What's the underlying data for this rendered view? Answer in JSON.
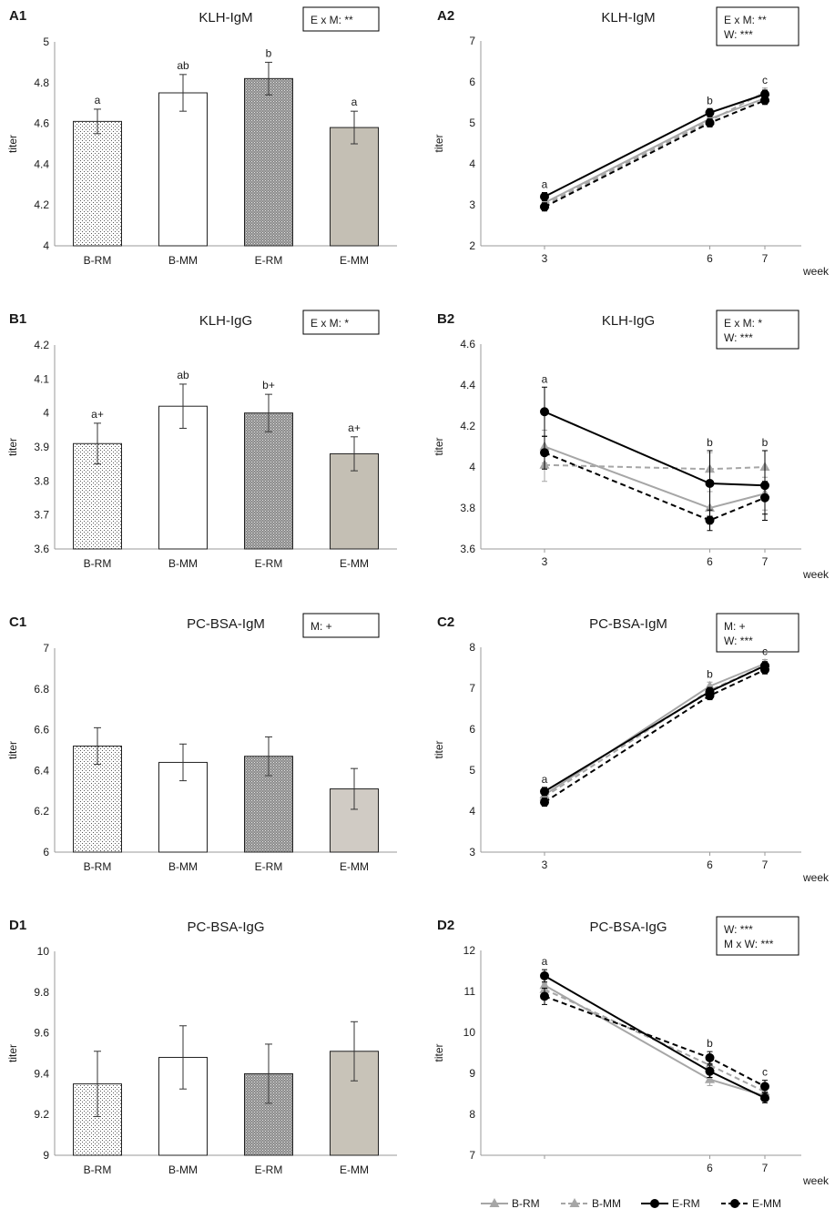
{
  "colors": {
    "light_gray": "#a6a6a6",
    "black": "#000000",
    "bar_fill_mm": "#ffffff",
    "bar_fill_emm_1": "#c4bfb4",
    "bar_fill_emm_2": "#d0cbc4",
    "bar_fill_emm_3": "#c8c3b8",
    "bar_fill_emm_4": "#c4bfb4"
  },
  "legend": {
    "items": [
      {
        "label": "B-RM",
        "color": "#a6a6a6",
        "dashed": false
      },
      {
        "label": "B-MM",
        "color": "#a6a6a6",
        "dashed": true
      },
      {
        "label": "E-RM",
        "color": "#000000",
        "dashed": false
      },
      {
        "label": "E-MM",
        "color": "#000000",
        "dashed": true
      }
    ]
  },
  "chart_data": [
    {
      "panel": "A1",
      "type": "bar",
      "title": "KLH-IgM",
      "ylabel": "titer",
      "ylim": [
        4,
        5
      ],
      "yticks": [
        "4",
        "4.2",
        "4.4",
        "4.6",
        "4.8",
        "5"
      ],
      "categories": [
        "B-RM",
        "B-MM",
        "E-RM",
        "E-MM"
      ],
      "values": [
        4.61,
        4.75,
        4.82,
        4.58
      ],
      "errors": [
        0.06,
        0.09,
        0.08,
        0.08
      ],
      "annotations": [
        "a",
        "ab",
        "b",
        "a"
      ],
      "fills": [
        "dots",
        "white",
        "dense",
        "tan1"
      ],
      "stats": [
        "E x M: **"
      ]
    },
    {
      "panel": "A2",
      "type": "line",
      "title": "KLH-IgM",
      "ylabel": "titer",
      "xlabel": "week",
      "ylim": [
        2,
        7
      ],
      "yticks": [
        "2",
        "3",
        "4",
        "5",
        "6",
        "7"
      ],
      "x": [
        3,
        6,
        7
      ],
      "xticks": [
        "3",
        "6",
        "7"
      ],
      "series": [
        {
          "name": "B-RM",
          "values": [
            3.05,
            5.1,
            5.6
          ],
          "errors": [
            0.1,
            0.1,
            0.1
          ]
        },
        {
          "name": "B-MM",
          "values": [
            3.0,
            5.05,
            5.75
          ],
          "errors": [
            0.1,
            0.1,
            0.1
          ]
        },
        {
          "name": "E-RM",
          "values": [
            3.2,
            5.25,
            5.7
          ],
          "errors": [
            0.1,
            0.1,
            0.1
          ]
        },
        {
          "name": "E-MM",
          "values": [
            2.95,
            5.0,
            5.55
          ],
          "errors": [
            0.1,
            0.1,
            0.1
          ]
        }
      ],
      "annotations": [
        "a",
        "b",
        "c"
      ],
      "stats": [
        "E x M: **",
        "W: ***"
      ]
    },
    {
      "panel": "B1",
      "type": "bar",
      "title": "KLH-IgG",
      "ylabel": "titer",
      "ylim": [
        3.6,
        4.2
      ],
      "yticks": [
        "3.6",
        "3.7",
        "3.8",
        "3.9",
        "4",
        "4.1",
        "4.2"
      ],
      "categories": [
        "B-RM",
        "B-MM",
        "E-RM",
        "E-MM"
      ],
      "values": [
        3.91,
        4.02,
        4.0,
        3.88
      ],
      "errors": [
        0.06,
        0.065,
        0.055,
        0.05
      ],
      "annotations": [
        "a+",
        "ab",
        "b+",
        "a+"
      ],
      "fills": [
        "dots",
        "white",
        "dense",
        "tan1"
      ],
      "stats": [
        "E x M: *"
      ]
    },
    {
      "panel": "B2",
      "type": "line",
      "title": "KLH-IgG",
      "ylabel": "titer",
      "xlabel": "week",
      "ylim": [
        3.6,
        4.6
      ],
      "yticks": [
        "3.6",
        "3.8",
        "4",
        "4.2",
        "4.4",
        "4.6"
      ],
      "x": [
        3,
        6,
        7
      ],
      "xticks": [
        "3",
        "6",
        "7"
      ],
      "series": [
        {
          "name": "B-RM",
          "values": [
            4.1,
            3.8,
            3.87
          ],
          "errors": [
            0.08,
            0.08,
            0.08
          ]
        },
        {
          "name": "B-MM",
          "values": [
            4.01,
            3.99,
            4.0
          ],
          "errors": [
            0.08,
            0.08,
            0.08
          ]
        },
        {
          "name": "E-RM",
          "values": [
            4.27,
            3.92,
            3.91
          ],
          "errors": [
            0.12,
            0.16,
            0.17
          ]
        },
        {
          "name": "E-MM",
          "values": [
            4.07,
            3.74,
            3.85
          ],
          "errors": [
            0.08,
            0.05,
            0.08
          ]
        }
      ],
      "annotations": [
        "a",
        "b",
        "b"
      ],
      "stats": [
        "E x M: *",
        "W: ***"
      ]
    },
    {
      "panel": "C1",
      "type": "bar",
      "title": "PC-BSA-IgM",
      "ylabel": "titer",
      "ylim": [
        6,
        7
      ],
      "yticks": [
        "6",
        "6.2",
        "6.4",
        "6.6",
        "6.8",
        "7"
      ],
      "categories": [
        "B-RM",
        "B-MM",
        "E-RM",
        "E-MM"
      ],
      "values": [
        6.52,
        6.44,
        6.47,
        6.31
      ],
      "errors": [
        0.09,
        0.09,
        0.095,
        0.1
      ],
      "annotations": [
        "",
        "",
        "",
        ""
      ],
      "fills": [
        "dots",
        "white",
        "dense",
        "tan2"
      ],
      "stats": [
        "M: +"
      ]
    },
    {
      "panel": "C2",
      "type": "line",
      "title": "PC-BSA-IgM",
      "ylabel": "titer",
      "xlabel": "week",
      "ylim": [
        3,
        8
      ],
      "yticks": [
        "3",
        "4",
        "5",
        "6",
        "7",
        "8"
      ],
      "x": [
        3,
        6,
        7
      ],
      "xticks": [
        "3",
        "6",
        "7"
      ],
      "series": [
        {
          "name": "B-RM",
          "values": [
            4.4,
            7.05,
            7.6
          ],
          "errors": [
            0.1,
            0.1,
            0.1
          ]
        },
        {
          "name": "B-MM",
          "values": [
            4.35,
            6.95,
            7.55
          ],
          "errors": [
            0.1,
            0.1,
            0.1
          ]
        },
        {
          "name": "E-RM",
          "values": [
            4.48,
            6.92,
            7.55
          ],
          "errors": [
            0.1,
            0.1,
            0.1
          ]
        },
        {
          "name": "E-MM",
          "values": [
            4.22,
            6.82,
            7.45
          ],
          "errors": [
            0.1,
            0.1,
            0.1
          ]
        }
      ],
      "annotations": [
        "a",
        "b",
        "c"
      ],
      "stats": [
        "M: +",
        "W: ***"
      ]
    },
    {
      "panel": "D1",
      "type": "bar",
      "title": "PC-BSA-IgG",
      "ylabel": "titer",
      "ylim": [
        9,
        10
      ],
      "yticks": [
        "9",
        "9.2",
        "9.4",
        "9.6",
        "9.8",
        "10"
      ],
      "categories": [
        "B-RM",
        "B-MM",
        "E-RM",
        "E-MM"
      ],
      "values": [
        9.35,
        9.48,
        9.4,
        9.51
      ],
      "errors": [
        0.16,
        0.155,
        0.145,
        0.145
      ],
      "annotations": [
        "",
        "",
        "",
        ""
      ],
      "fills": [
        "dots",
        "white",
        "dense",
        "tan3"
      ],
      "stats": []
    },
    {
      "panel": "D2",
      "type": "line",
      "title": "PC-BSA-IgG",
      "ylabel": "titer",
      "xlabel": "week",
      "ylim": [
        7,
        12
      ],
      "yticks": [
        "7",
        "8",
        "9",
        "10",
        "11",
        "12"
      ],
      "x": [
        3,
        6,
        7
      ],
      "xticks": [
        "",
        "6",
        "7"
      ],
      "series": [
        {
          "name": "B-RM",
          "values": [
            11.15,
            8.85,
            8.45
          ],
          "errors": [
            0.15,
            0.15,
            0.12
          ]
        },
        {
          "name": "B-MM",
          "values": [
            11.05,
            9.2,
            8.55
          ],
          "errors": [
            0.15,
            0.15,
            0.12
          ]
        },
        {
          "name": "E-RM",
          "values": [
            11.38,
            9.05,
            8.4
          ],
          "errors": [
            0.15,
            0.15,
            0.12
          ]
        },
        {
          "name": "E-MM",
          "values": [
            10.88,
            9.38,
            8.68
          ],
          "errors": [
            0.2,
            0.15,
            0.15
          ]
        }
      ],
      "annotations": [
        "a",
        "b",
        "c"
      ],
      "stats": [
        "W: ***",
        "M x W: ***"
      ]
    }
  ]
}
